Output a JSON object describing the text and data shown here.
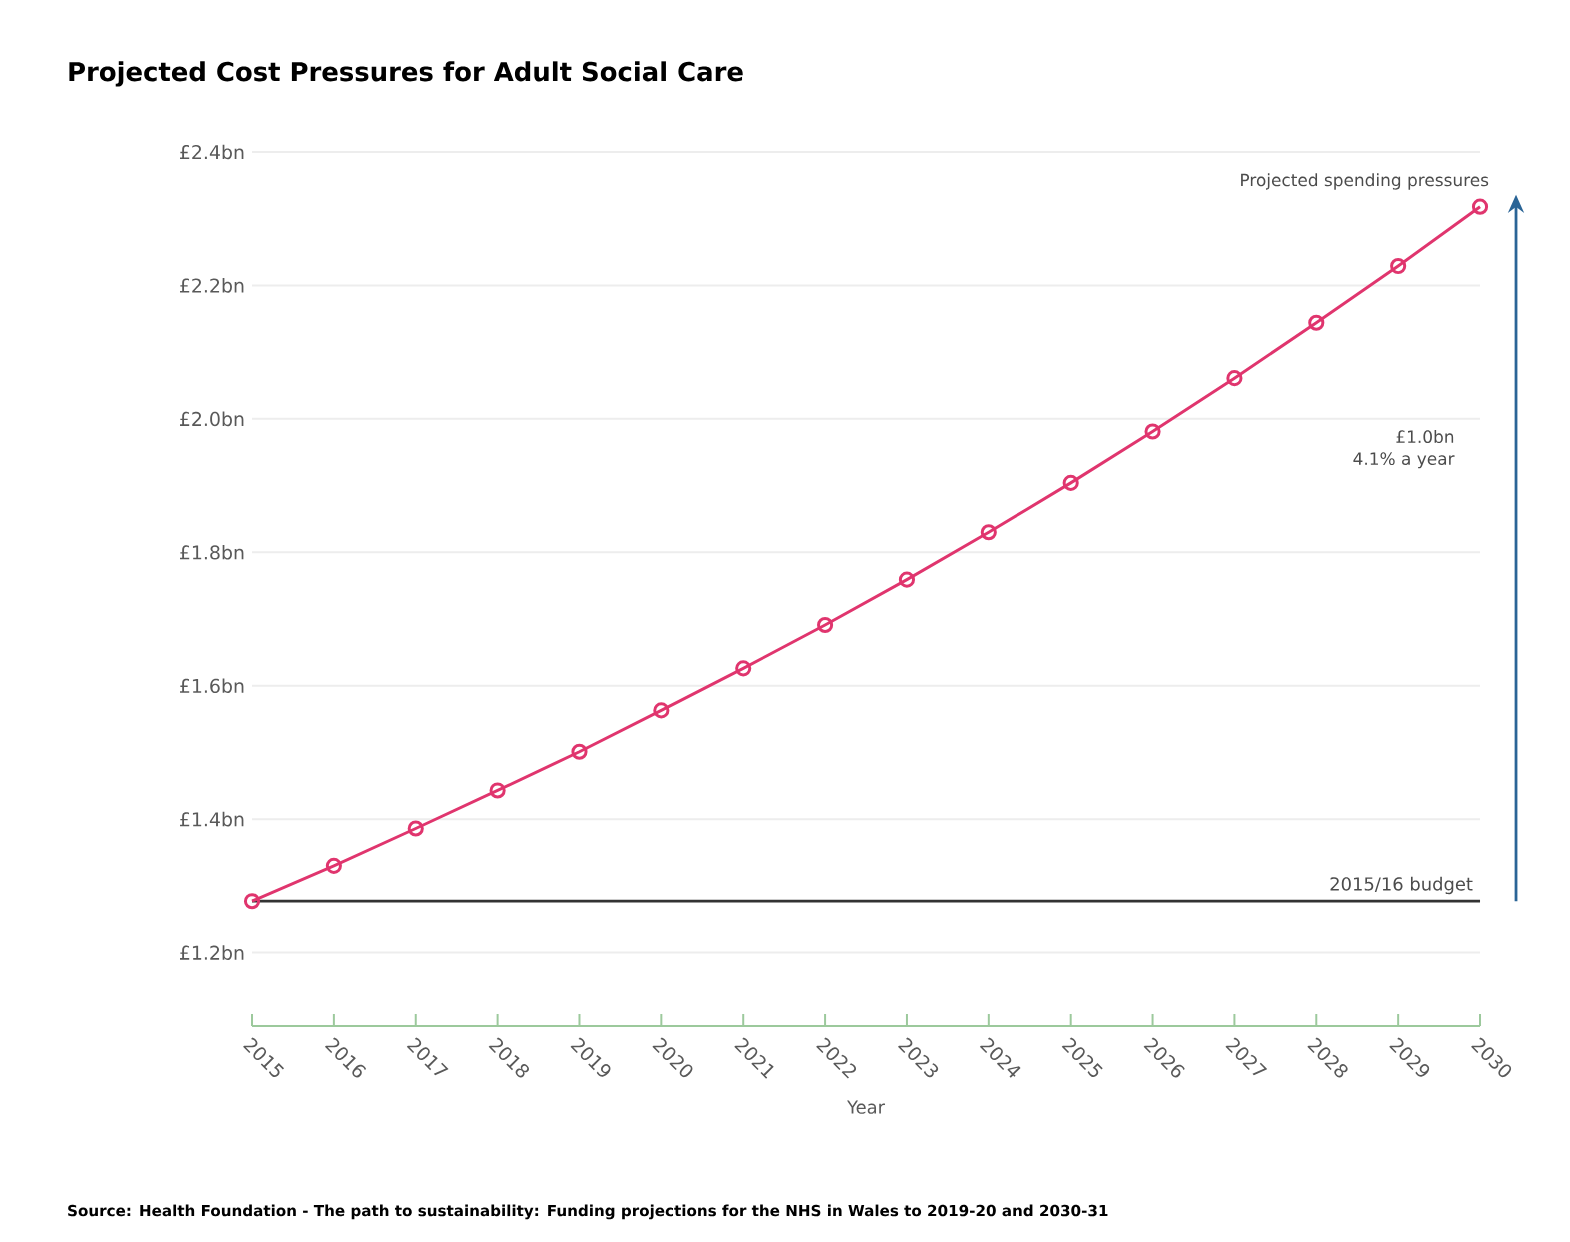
{
  "chart_data": {
    "type": "line",
    "title": "Projected Cost Pressures for Adult Social Care",
    "xlabel": "Year",
    "x": [
      2015,
      2016,
      2017,
      2018,
      2019,
      2020,
      2021,
      2022,
      2023,
      2024,
      2025,
      2026,
      2027,
      2028,
      2029,
      2030
    ],
    "series": [
      {
        "color": "#e0356e",
        "values": [
          1.277,
          1.33,
          1.386,
          1.443,
          1.501,
          1.563,
          1.626,
          1.691,
          1.759,
          1.83,
          1.904,
          1.981,
          2.061,
          2.144,
          2.229,
          2.318
        ]
      }
    ],
    "marker": "circle",
    "line_style": "solid",
    "grid": "y",
    "xlim": [
      2015,
      2030
    ],
    "xticks": [
      2015,
      2016,
      2017,
      2018,
      2019,
      2020,
      2021,
      2022,
      2023,
      2024,
      2025,
      2026,
      2027,
      2028,
      2029,
      2030
    ],
    "ylim": [
      1.09,
      2.4
    ],
    "yticks": [
      {
        "value": 1.2,
        "label": "£1.2bn"
      },
      {
        "value": 1.4,
        "label": "£1.4bn"
      },
      {
        "value": 1.6,
        "label": "£1.6bn"
      },
      {
        "value": 1.8,
        "label": "£1.8bn"
      },
      {
        "value": 2.0,
        "label": "£2.0bn"
      },
      {
        "value": 2.2,
        "label": "£2.2bn"
      },
      {
        "value": 2.4,
        "label": "£2.4bn"
      }
    ],
    "ref_lines": [
      {
        "axis": "y",
        "value": 1.277,
        "label": "2015/16 budget",
        "color": "#333333"
      }
    ],
    "annotations": [
      {
        "text": "Projected spending pressures",
        "x": 2030,
        "y": 2.318
      },
      "£1.0bn",
      "4.1% a year",
      "Source: Health Foundation - The path to sustainability: Funding projections for the NHS in Wales to 2019-20 and 2030-31"
    ]
  }
}
